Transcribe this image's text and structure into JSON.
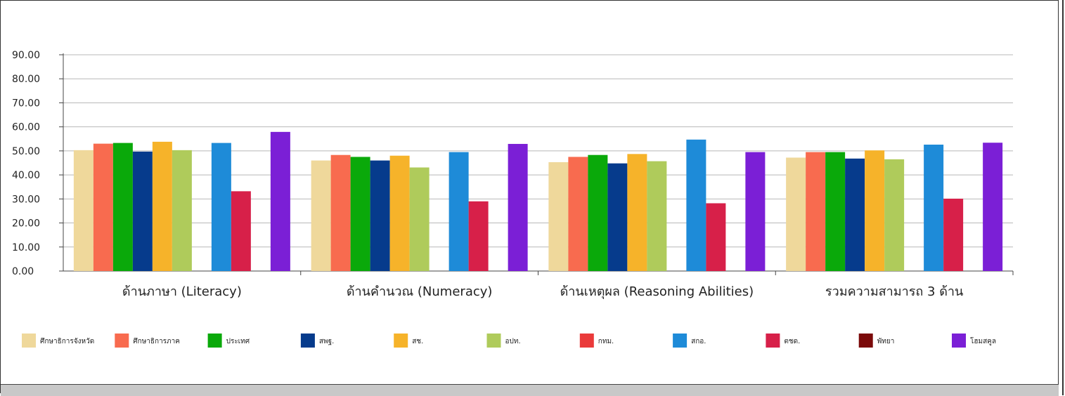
{
  "chart_data": {
    "type": "bar",
    "title": "",
    "xlabel": "",
    "ylabel": "",
    "ylim": [
      0,
      90
    ],
    "yticks": [
      "0.00",
      "10.00",
      "20.00",
      "30.00",
      "40.00",
      "50.00",
      "60.00",
      "70.00",
      "80.00",
      "90.00"
    ],
    "grid": true,
    "legend_position": "bottom",
    "categories": [
      "ด้านภาษา (Literacy)",
      "ด้านคำนวณ (Numeracy)",
      "ด้านเหตุผล (Reasoning Abilities)",
      "รวมความสามารถ 3 ด้าน"
    ],
    "series": [
      {
        "name": "ศึกษาธิการจังหวัด",
        "color": "#EFD89B",
        "values": [
          50.3,
          46.0,
          45.3,
          47.2
        ]
      },
      {
        "name": "ศึกษาธิการภาค",
        "color": "#F86B4F",
        "values": [
          53.0,
          48.3,
          47.5,
          49.5
        ]
      },
      {
        "name": "ประเทศ",
        "color": "#0AA90A",
        "values": [
          53.3,
          47.5,
          48.3,
          49.5
        ]
      },
      {
        "name": "สพฐ.",
        "color": "#063B8C",
        "values": [
          49.7,
          46.0,
          44.8,
          46.8
        ]
      },
      {
        "name": "สช.",
        "color": "#F6B32A",
        "values": [
          53.8,
          48.0,
          48.7,
          50.2
        ]
      },
      {
        "name": "อปท.",
        "color": "#AFCB5B",
        "values": [
          50.3,
          43.1,
          45.7,
          46.5
        ]
      },
      {
        "name": "กทม.",
        "color": "#EA3A3A",
        "values": [
          null,
          null,
          null,
          null
        ]
      },
      {
        "name": "สกอ.",
        "color": "#1E8BD8",
        "values": [
          53.3,
          49.5,
          54.7,
          52.6
        ]
      },
      {
        "name": "ตชด.",
        "color": "#D72049",
        "values": [
          33.2,
          29.0,
          28.2,
          30.1
        ]
      },
      {
        "name": "พัทยา",
        "color": "#7B0A0A",
        "values": [
          null,
          null,
          null,
          null
        ]
      },
      {
        "name": "โฮมสคูล",
        "color": "#7B1FD6",
        "values": [
          57.9,
          52.9,
          49.5,
          53.4
        ]
      }
    ]
  }
}
